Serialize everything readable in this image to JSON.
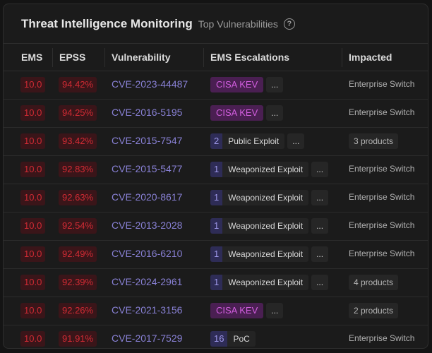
{
  "header": {
    "title": "Threat Intelligence Monitoring",
    "subtitle": "Top Vulnerabilities",
    "help_icon": "?"
  },
  "columns": [
    "EMS",
    "EPSS",
    "Vulnerability",
    "EMS Escalations",
    "Impacted"
  ],
  "more_label": "...",
  "rows": [
    {
      "ems": "10.0",
      "epss": "94.42%",
      "cve": "CVE-2023-44487",
      "kev": "CISA KEV",
      "count": null,
      "esc": null,
      "more": true,
      "impacted": "Enterprise Switch",
      "impacted_chip": false
    },
    {
      "ems": "10.0",
      "epss": "94.25%",
      "cve": "CVE-2016-5195",
      "kev": "CISA KEV",
      "count": null,
      "esc": null,
      "more": true,
      "impacted": "Enterprise Switch",
      "impacted_chip": false
    },
    {
      "ems": "10.0",
      "epss": "93.42%",
      "cve": "CVE-2015-7547",
      "kev": null,
      "count": "2",
      "esc": "Public Exploit",
      "more": true,
      "impacted": "3 products",
      "impacted_chip": true
    },
    {
      "ems": "10.0",
      "epss": "92.83%",
      "cve": "CVE-2015-5477",
      "kev": null,
      "count": "1",
      "esc": "Weaponized Exploit",
      "more": true,
      "impacted": "Enterprise Switch",
      "impacted_chip": false
    },
    {
      "ems": "10.0",
      "epss": "92.63%",
      "cve": "CVE-2020-8617",
      "kev": null,
      "count": "1",
      "esc": "Weaponized Exploit",
      "more": true,
      "impacted": "Enterprise Switch",
      "impacted_chip": false
    },
    {
      "ems": "10.0",
      "epss": "92.54%",
      "cve": "CVE-2013-2028",
      "kev": null,
      "count": "1",
      "esc": "Weaponized Exploit",
      "more": true,
      "impacted": "Enterprise Switch",
      "impacted_chip": false
    },
    {
      "ems": "10.0",
      "epss": "92.49%",
      "cve": "CVE-2016-6210",
      "kev": null,
      "count": "1",
      "esc": "Weaponized Exploit",
      "more": true,
      "impacted": "Enterprise Switch",
      "impacted_chip": false
    },
    {
      "ems": "10.0",
      "epss": "92.39%",
      "cve": "CVE-2024-2961",
      "kev": null,
      "count": "1",
      "esc": "Weaponized Exploit",
      "more": true,
      "impacted": "4 products",
      "impacted_chip": true
    },
    {
      "ems": "10.0",
      "epss": "92.26%",
      "cve": "CVE-2021-3156",
      "kev": "CISA KEV",
      "count": null,
      "esc": null,
      "more": true,
      "impacted": "2 products",
      "impacted_chip": true
    },
    {
      "ems": "10.0",
      "epss": "91.91%",
      "cve": "CVE-2017-7529",
      "kev": null,
      "count": "16",
      "esc": "PoC",
      "more": false,
      "impacted": "Enterprise Switch",
      "impacted_chip": false
    }
  ]
}
